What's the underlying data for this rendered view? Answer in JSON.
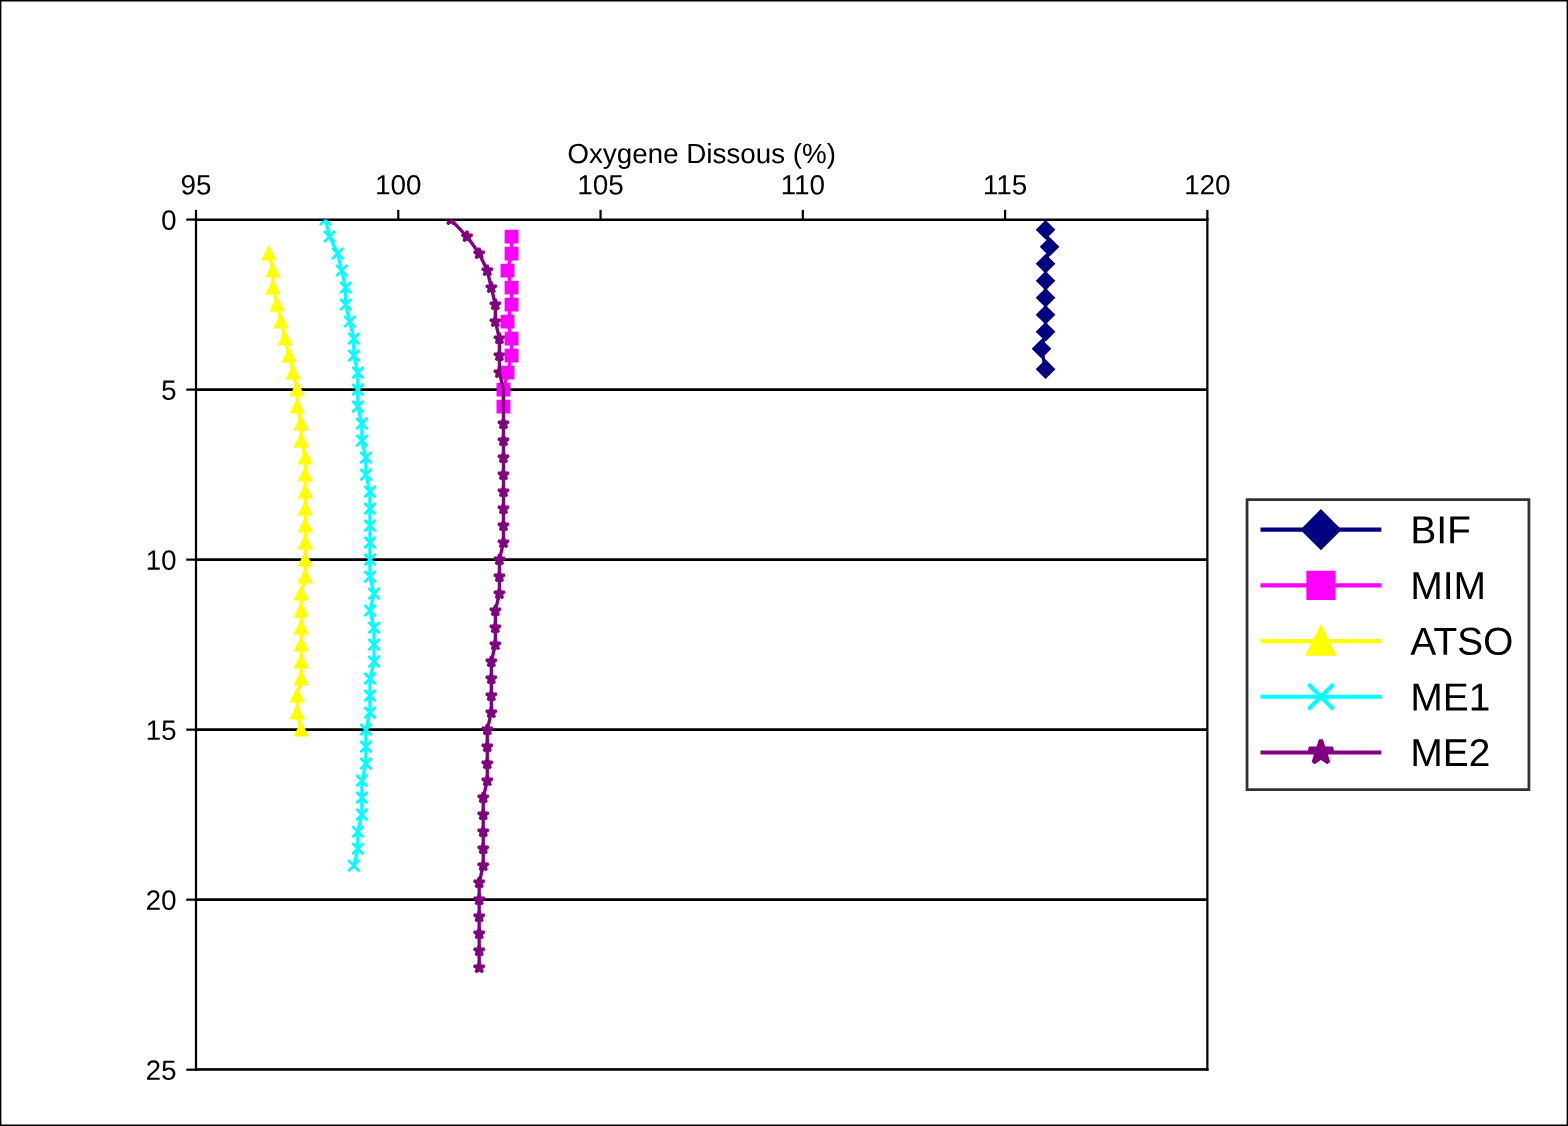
{
  "chart_data": {
    "type": "line",
    "xlabel": "Oxygene Dissous (%)",
    "xlim": [
      95,
      120
    ],
    "xticks": [
      95,
      100,
      105,
      110,
      115,
      120
    ],
    "ylim": [
      25,
      0
    ],
    "yticks": [
      0,
      5,
      10,
      15,
      20,
      25
    ],
    "grid": "y",
    "legend": "right",
    "line_style": "solid",
    "series": [
      {
        "name": "BIF",
        "color": "#000080",
        "marker": "diamond",
        "x": [
          116.0,
          116.1,
          116.0,
          116.0,
          116.0,
          116.0,
          116.0,
          115.9,
          116.0
        ],
        "values": [
          0.3,
          0.8,
          1.3,
          1.8,
          2.3,
          2.8,
          3.3,
          3.8,
          4.4
        ]
      },
      {
        "name": "MIM",
        "color": "#ff00ff",
        "marker": "square",
        "x": [
          102.8,
          102.8,
          102.7,
          102.8,
          102.8,
          102.7,
          102.8,
          102.8,
          102.7,
          102.6,
          102.6
        ],
        "values": [
          0.5,
          1,
          1.5,
          2,
          2.5,
          3,
          3.5,
          4,
          4.5,
          5,
          5.5
        ]
      },
      {
        "name": "ATSO",
        "color": "#ffff00",
        "marker": "triangle",
        "x": [
          96.8,
          96.9,
          96.9,
          97.0,
          97.1,
          97.2,
          97.3,
          97.4,
          97.5,
          97.5,
          97.6,
          97.6,
          97.7,
          97.7,
          97.7,
          97.7,
          97.7,
          97.7,
          97.7,
          97.7,
          97.6,
          97.6,
          97.6,
          97.6,
          97.6,
          97.6,
          97.5,
          97.5,
          97.6
        ],
        "values": [
          1,
          1.5,
          2,
          2.5,
          3,
          3.5,
          4,
          4.5,
          5,
          5.5,
          6,
          6.5,
          7,
          7.5,
          8,
          8.5,
          9,
          9.5,
          10,
          10.5,
          11,
          11.5,
          12,
          12.5,
          13,
          13.5,
          14,
          14.5,
          15
        ]
      },
      {
        "name": "ME1",
        "color": "#00ffff",
        "marker": "cross",
        "x": [
          98.2,
          98.3,
          98.5,
          98.6,
          98.7,
          98.7,
          98.8,
          98.9,
          98.9,
          99.0,
          99.0,
          99.0,
          99.1,
          99.1,
          99.2,
          99.2,
          99.3,
          99.3,
          99.3,
          99.3,
          99.3,
          99.3,
          99.4,
          99.3,
          99.4,
          99.4,
          99.4,
          99.3,
          99.3,
          99.3,
          99.2,
          99.2,
          99.2,
          99.1,
          99.1,
          99.1,
          99.0,
          99.0,
          98.9
        ],
        "values": [
          0,
          0.5,
          1,
          1.5,
          2,
          2.5,
          3,
          3.5,
          4,
          4.5,
          5,
          5.5,
          6,
          6.5,
          7,
          7.5,
          8,
          8.5,
          9,
          9.5,
          10,
          10.5,
          11,
          11.5,
          12,
          12.5,
          13,
          13.5,
          14,
          14.5,
          15,
          15.5,
          16,
          16.5,
          17,
          17.5,
          18,
          18.5,
          19
        ]
      },
      {
        "name": "ME2",
        "color": "#800080",
        "marker": "star",
        "x": [
          101.3,
          101.7,
          102.0,
          102.2,
          102.3,
          102.4,
          102.4,
          102.5,
          102.5,
          102.5,
          102.6,
          102.6,
          102.6,
          102.6,
          102.6,
          102.6,
          102.6,
          102.6,
          102.6,
          102.6,
          102.5,
          102.5,
          102.5,
          102.4,
          102.4,
          102.4,
          102.3,
          102.3,
          102.3,
          102.3,
          102.2,
          102.2,
          102.2,
          102.2,
          102.1,
          102.1,
          102.1,
          102.1,
          102.1,
          102.0,
          102.0,
          102.0,
          102.0,
          102.0,
          102.0
        ],
        "values": [
          0,
          0.5,
          1,
          1.5,
          2,
          2.5,
          3,
          3.5,
          4,
          4.5,
          5,
          5.5,
          6,
          6.5,
          7,
          7.5,
          8,
          8.5,
          9,
          9.5,
          10,
          10.5,
          11,
          11.5,
          12,
          12.5,
          13,
          13.5,
          14,
          14.5,
          15,
          15.5,
          16,
          16.5,
          17,
          17.5,
          18,
          18.5,
          19,
          19.5,
          20,
          20.5,
          21,
          21.5,
          22
        ]
      }
    ]
  }
}
